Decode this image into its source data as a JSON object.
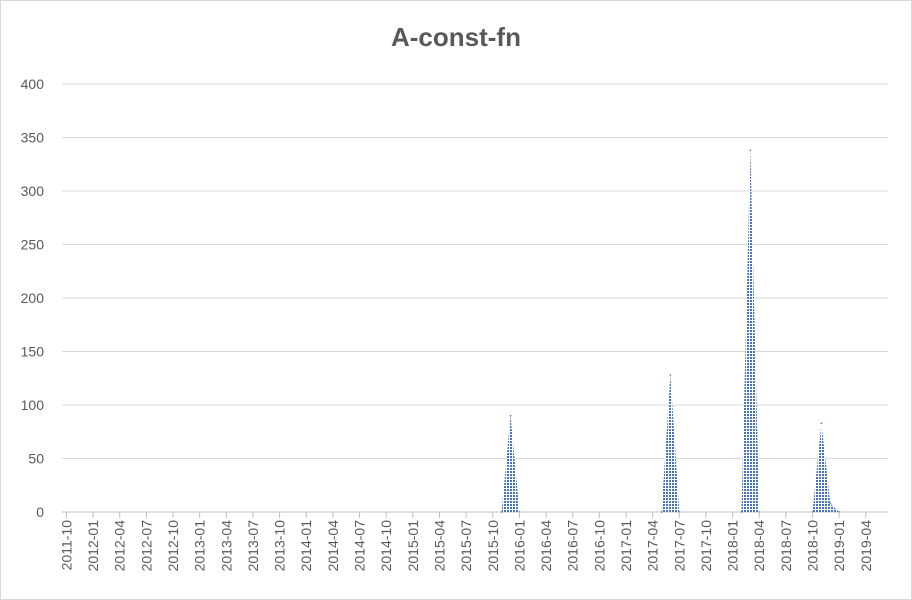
{
  "chart_data": {
    "type": "area",
    "title": "A-const-fn",
    "xlabel": "",
    "ylabel": "",
    "ylim": [
      0,
      400
    ],
    "yticks": [
      0,
      50,
      100,
      150,
      200,
      250,
      300,
      350,
      400
    ],
    "grid": true,
    "legend": "none",
    "x_tick_labels": [
      "2011-10",
      "2012-01",
      "2012-04",
      "2012-07",
      "2012-10",
      "2013-01",
      "2013-04",
      "2013-07",
      "2013-10",
      "2014-01",
      "2014-04",
      "2014-07",
      "2014-10",
      "2015-01",
      "2015-04",
      "2015-07",
      "2015-10",
      "2016-01",
      "2016-04",
      "2016-07",
      "2016-10",
      "2017-01",
      "2017-04",
      "2017-07",
      "2017-10",
      "2018-01",
      "2018-04",
      "2018-07",
      "2018-10",
      "2019-01",
      "2019-04"
    ],
    "series": [
      {
        "color": "#4472c4",
        "points": [
          {
            "x": "2015-11",
            "y": 0
          },
          {
            "x": "2015-12",
            "y": 90
          },
          {
            "x": "2016-01",
            "y": 0
          },
          {
            "x": "2017-05",
            "y": 0
          },
          {
            "x": "2017-06",
            "y": 128
          },
          {
            "x": "2017-07",
            "y": 0
          },
          {
            "x": "2018-02",
            "y": 0
          },
          {
            "x": "2018-03",
            "y": 338
          },
          {
            "x": "2018-04",
            "y": 0
          },
          {
            "x": "2018-10",
            "y": 0
          },
          {
            "x": "2018-11",
            "y": 83
          },
          {
            "x": "2018-12",
            "y": 8
          },
          {
            "x": "2019-01",
            "y": 0
          }
        ]
      }
    ]
  }
}
